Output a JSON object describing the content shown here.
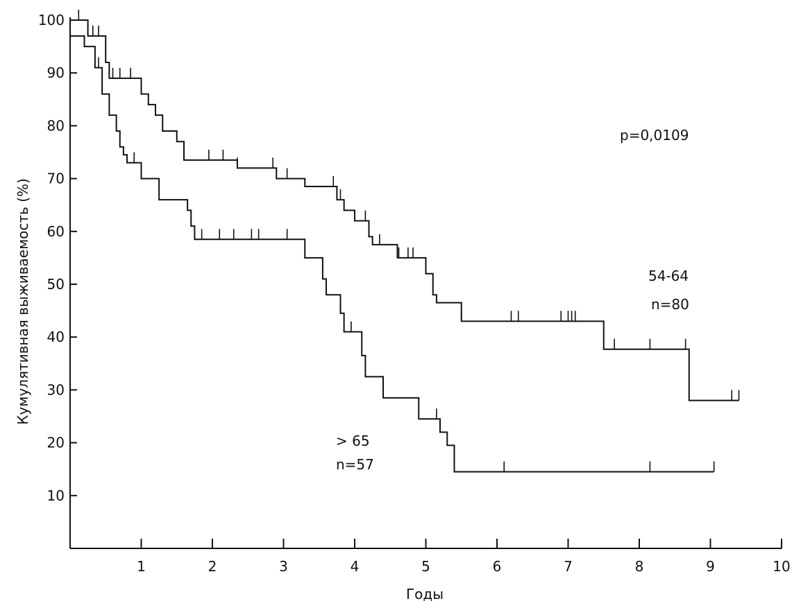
{
  "chart_data": {
    "type": "line",
    "title": "",
    "xlabel": "Годы",
    "ylabel": "Кумулятивная выживаемость (%)",
    "xlim": [
      0,
      10
    ],
    "ylim": [
      0,
      100
    ],
    "x_ticks": [
      1,
      2,
      3,
      4,
      5,
      6,
      7,
      8,
      9,
      10
    ],
    "y_ticks": [
      10,
      20,
      30,
      40,
      50,
      60,
      70,
      80,
      90,
      100
    ],
    "grid": false,
    "series": [
      {
        "name": "54-64",
        "label_lines": [
          "54-64",
          "n=80"
        ],
        "x": [
          0,
          0.25,
          0.5,
          0.55,
          0.8,
          1.0,
          1.1,
          1.2,
          1.3,
          1.5,
          1.6,
          2.35,
          2.9,
          3.3,
          3.75,
          3.85,
          4.0,
          4.2,
          4.25,
          4.6,
          4.75,
          5.0,
          5.1,
          5.15,
          5.5,
          7.5,
          8.7,
          9.4
        ],
        "y": [
          100,
          97,
          92,
          89,
          89,
          86,
          84,
          82,
          79,
          77,
          73.5,
          72,
          70,
          68.5,
          66,
          64,
          62,
          59,
          57.5,
          55,
          55,
          52,
          48,
          46.5,
          43,
          37.7,
          28,
          28
        ],
        "censor_x": [
          0.12,
          0.25,
          0.32,
          0.4,
          0.6,
          0.7,
          0.85,
          1.0,
          1.2,
          1.3,
          1.95,
          2.15,
          2.35,
          2.85,
          3.05,
          3.7,
          3.8,
          4.15,
          4.2,
          4.35,
          4.62,
          4.75,
          4.82,
          5.5,
          6.2,
          6.3,
          6.9,
          7.0,
          7.05,
          7.1,
          7.65,
          8.15,
          8.65,
          9.3,
          9.4
        ]
      },
      {
        "name": "> 65",
        "label_lines": [
          "> 65",
          "n=57"
        ],
        "x": [
          0,
          0.2,
          0.35,
          0.45,
          0.55,
          0.65,
          0.7,
          0.75,
          0.8,
          0.85,
          1.0,
          1.25,
          1.65,
          1.7,
          1.75,
          3.3,
          3.55,
          3.6,
          3.8,
          3.85,
          4.1,
          4.15,
          4.4,
          4.9,
          5.2,
          5.3,
          5.4,
          9.05
        ],
        "y": [
          97,
          95,
          91,
          86,
          82,
          79,
          76,
          74.5,
          73,
          73,
          70,
          66,
          64,
          61,
          58.5,
          55,
          51,
          48,
          44.5,
          41,
          36.5,
          32.5,
          28.5,
          24.5,
          22,
          19.5,
          14.5,
          14.5
        ],
        "censor_x": [
          0.2,
          0.4,
          0.9,
          1.85,
          2.1,
          2.3,
          2.55,
          2.65,
          3.05,
          3.95,
          5.15,
          6.1,
          8.15,
          9.05
        ]
      }
    ],
    "annotations": [
      {
        "text": "p=0,0109"
      }
    ]
  }
}
